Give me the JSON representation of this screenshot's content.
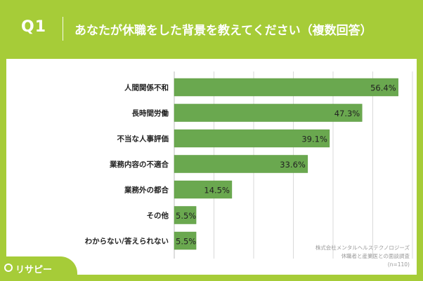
{
  "header": {
    "q_label": "Q1",
    "title": "あなたが休職をした背景を教えてください（複数回答）"
  },
  "note": {
    "line1": "株式会社メンタルヘルステクノロジーズ",
    "line2": "休職者と産業医との面談調査",
    "line3": "(n=110)"
  },
  "logo": {
    "text": "リサピー"
  },
  "colors": {
    "background": "#a6cc38",
    "bar": "#6aa84f",
    "bar_border": "#5a9a3f",
    "grid": "#d9d9d9"
  },
  "chart_data": {
    "type": "bar",
    "orientation": "horizontal",
    "categories": [
      "人間関係不和",
      "長時間労働",
      "不当な人事評価",
      "業務内容の不適合",
      "業務外の都合",
      "その他",
      "わからない/答えられない"
    ],
    "values": [
      56.4,
      47.3,
      39.1,
      33.6,
      14.5,
      5.5,
      5.5
    ],
    "value_labels": [
      "56.4%",
      "47.3%",
      "39.1%",
      "33.6%",
      "14.5%",
      "5.5%",
      "5.5%"
    ],
    "xlim": [
      0,
      60
    ],
    "grid": true,
    "legend": "none"
  }
}
